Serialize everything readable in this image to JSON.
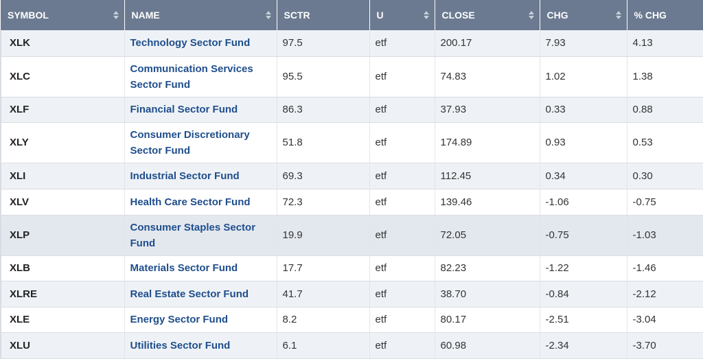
{
  "columns": [
    {
      "label": "SYMBOL",
      "sortable": true
    },
    {
      "label": "NAME",
      "sortable": true
    },
    {
      "label": "SCTR",
      "sortable": false
    },
    {
      "label": "U",
      "sortable": true
    },
    {
      "label": "CLOSE",
      "sortable": true
    },
    {
      "label": "CHG",
      "sortable": true
    },
    {
      "label": "% CHG",
      "sortable": false
    }
  ],
  "rows": [
    {
      "symbol": "XLK",
      "name": "Technology Sector Fund",
      "sctr": "97.5",
      "u": "etf",
      "close": "200.17",
      "chg": "7.93",
      "pct_chg": "4.13"
    },
    {
      "symbol": "XLC",
      "name": "Communication Services Sector Fund",
      "sctr": "95.5",
      "u": "etf",
      "close": "74.83",
      "chg": "1.02",
      "pct_chg": "1.38"
    },
    {
      "symbol": "XLF",
      "name": "Financial Sector Fund",
      "sctr": "86.3",
      "u": "etf",
      "close": "37.93",
      "chg": "0.33",
      "pct_chg": "0.88"
    },
    {
      "symbol": "XLY",
      "name": "Consumer Discretionary Sector Fund",
      "sctr": "51.8",
      "u": "etf",
      "close": "174.89",
      "chg": "0.93",
      "pct_chg": "0.53"
    },
    {
      "symbol": "XLI",
      "name": "Industrial Sector Fund",
      "sctr": "69.3",
      "u": "etf",
      "close": "112.45",
      "chg": "0.34",
      "pct_chg": "0.30"
    },
    {
      "symbol": "XLV",
      "name": "Health Care Sector Fund",
      "sctr": "72.3",
      "u": "etf",
      "close": "139.46",
      "chg": "-1.06",
      "pct_chg": "-0.75"
    },
    {
      "symbol": "XLP",
      "name": "Consumer Staples Sector Fund",
      "sctr": "19.9",
      "u": "etf",
      "close": "72.05",
      "chg": "-0.75",
      "pct_chg": "-1.03"
    },
    {
      "symbol": "XLB",
      "name": "Materials Sector Fund",
      "sctr": "17.7",
      "u": "etf",
      "close": "82.23",
      "chg": "-1.22",
      "pct_chg": "-1.46"
    },
    {
      "symbol": "XLRE",
      "name": "Real Estate Sector Fund",
      "sctr": "41.7",
      "u": "etf",
      "close": "38.70",
      "chg": "-0.84",
      "pct_chg": "-2.12"
    },
    {
      "symbol": "XLE",
      "name": "Energy Sector Fund",
      "sctr": "8.2",
      "u": "etf",
      "close": "80.17",
      "chg": "-2.51",
      "pct_chg": "-3.04"
    },
    {
      "symbol": "XLU",
      "name": "Utilities Sector Fund",
      "sctr": "6.1",
      "u": "etf",
      "close": "60.98",
      "chg": "-2.34",
      "pct_chg": "-3.70"
    }
  ]
}
